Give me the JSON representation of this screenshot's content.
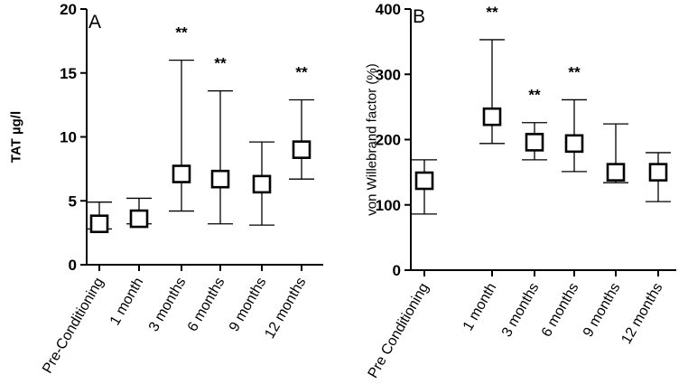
{
  "chart_data": [
    {
      "type": "scatter",
      "panel_label": "A",
      "ylabel": "TAT µg/l",
      "ylim": [
        0,
        20
      ],
      "yticks": [
        0,
        5,
        10,
        15,
        20
      ],
      "categories": [
        "Pre-Conditioning",
        "1 month",
        "3 months",
        "6 months",
        "9 months",
        "12 months"
      ],
      "values": [
        3.2,
        3.6,
        7.1,
        6.7,
        6.3,
        9.0
      ],
      "err_low": [
        2.8,
        3.2,
        4.2,
        3.2,
        3.1,
        6.7
      ],
      "err_high": [
        4.9,
        5.2,
        16.0,
        13.6,
        9.6,
        12.9
      ],
      "annotations": [
        "",
        "",
        "**",
        "**",
        "",
        "**"
      ],
      "grid": false,
      "legend": "none"
    },
    {
      "type": "scatter",
      "panel_label": "B",
      "ylabel": "von Willebrand factor (%)",
      "ylim": [
        0,
        400
      ],
      "yticks": [
        0,
        100,
        200,
        300,
        400
      ],
      "categories": [
        "Pre Conditioning",
        "1 month",
        "3 months",
        "6 months",
        "9 months",
        "12 months"
      ],
      "values": [
        137,
        235,
        196,
        194,
        150,
        150
      ],
      "err_low": [
        86,
        194,
        169,
        151,
        134,
        105
      ],
      "err_high": [
        169,
        353,
        226,
        261,
        224,
        180
      ],
      "annotations": [
        "",
        "**",
        "**",
        "**",
        "",
        ""
      ],
      "grid": false,
      "legend": "none"
    }
  ]
}
